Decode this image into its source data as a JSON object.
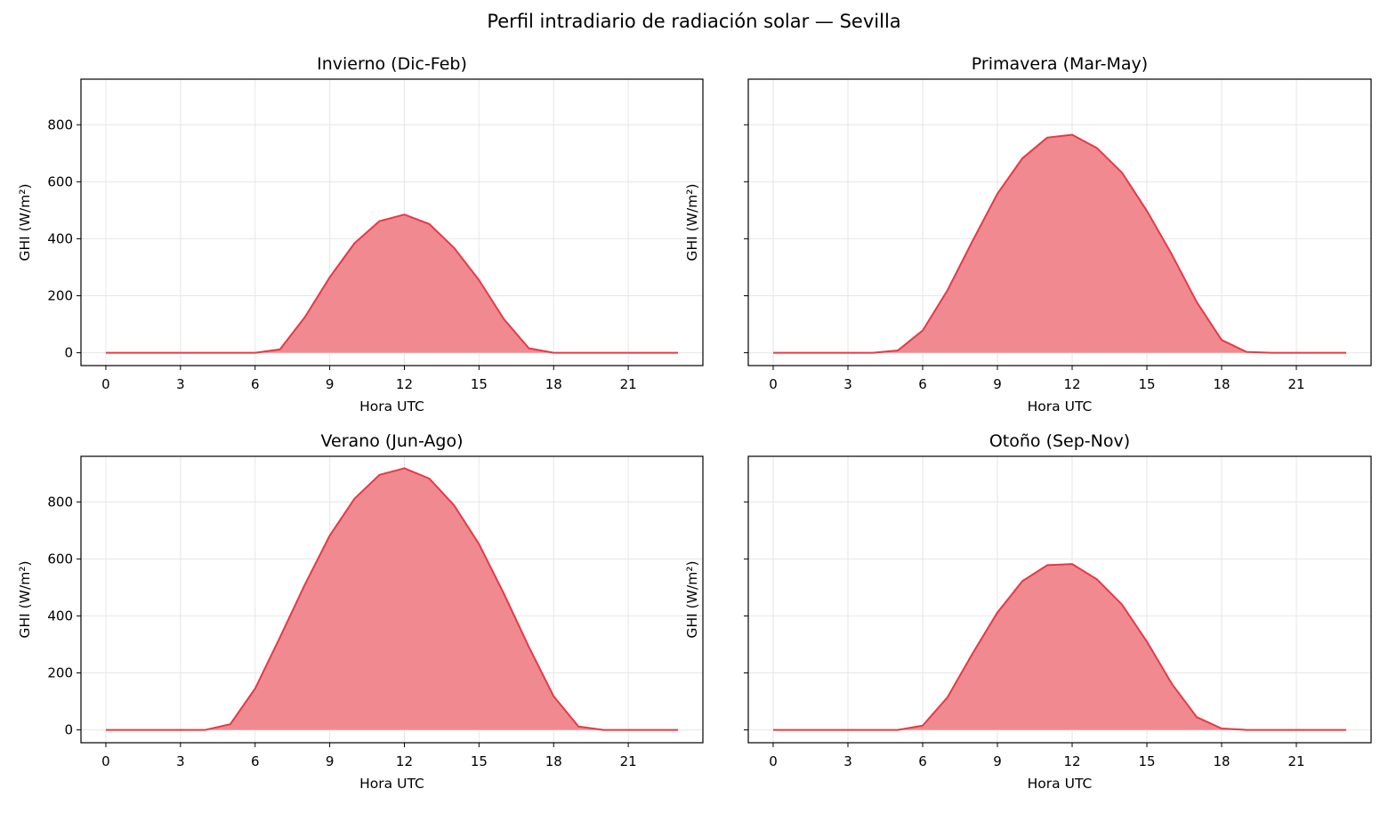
{
  "figure": {
    "suptitle": "Perfil intradiario de radiación solar — Sevilla"
  },
  "colors": {
    "line": "#e63946",
    "fill": "#f08a90",
    "grid": "#e6e6e6",
    "axes": "#000000"
  },
  "chart_data": [
    {
      "type": "area",
      "title": "Invierno (Dic-Feb)",
      "xlabel": "Hora UTC",
      "ylabel": "GHI (W/m²)",
      "xlim": [
        -1,
        24
      ],
      "ylim": [
        -45,
        960
      ],
      "xticks": [
        0,
        3,
        6,
        9,
        12,
        15,
        18,
        21
      ],
      "yticks": [
        0,
        200,
        400,
        600,
        800
      ],
      "show_yticklabels": true,
      "grid": true,
      "x": [
        0,
        1,
        2,
        3,
        4,
        5,
        6,
        7,
        8,
        9,
        10,
        11,
        12,
        13,
        14,
        15,
        16,
        17,
        18,
        19,
        20,
        21,
        22,
        23
      ],
      "values": [
        0,
        0,
        0,
        0,
        0,
        0,
        0,
        12,
        125,
        265,
        385,
        462,
        485,
        452,
        368,
        255,
        118,
        16,
        0,
        0,
        0,
        0,
        0,
        0
      ]
    },
    {
      "type": "area",
      "title": "Primavera (Mar-May)",
      "xlabel": "Hora UTC",
      "ylabel": "GHI (W/m²)",
      "xlim": [
        -1,
        24
      ],
      "ylim": [
        -45,
        960
      ],
      "xticks": [
        0,
        3,
        6,
        9,
        12,
        15,
        18,
        21
      ],
      "yticks": [
        0,
        200,
        400,
        600,
        800
      ],
      "show_yticklabels": false,
      "grid": true,
      "x": [
        0,
        1,
        2,
        3,
        4,
        5,
        6,
        7,
        8,
        9,
        10,
        11,
        12,
        13,
        14,
        15,
        16,
        17,
        18,
        19,
        20,
        21,
        22,
        23
      ],
      "values": [
        0,
        0,
        0,
        0,
        0,
        8,
        78,
        220,
        392,
        558,
        682,
        755,
        765,
        718,
        632,
        498,
        345,
        178,
        45,
        3,
        0,
        0,
        0,
        0
      ]
    },
    {
      "type": "area",
      "title": "Verano (Jun-Ago)",
      "xlabel": "Hora UTC",
      "ylabel": "GHI (W/m²)",
      "xlim": [
        -1,
        24
      ],
      "ylim": [
        -45,
        960
      ],
      "xticks": [
        0,
        3,
        6,
        9,
        12,
        15,
        18,
        21
      ],
      "yticks": [
        0,
        200,
        400,
        600,
        800
      ],
      "show_yticklabels": true,
      "grid": true,
      "x": [
        0,
        1,
        2,
        3,
        4,
        5,
        6,
        7,
        8,
        9,
        10,
        11,
        12,
        13,
        14,
        15,
        16,
        17,
        18,
        19,
        20,
        21,
        22,
        23
      ],
      "values": [
        0,
        0,
        0,
        0,
        0,
        20,
        145,
        325,
        510,
        682,
        812,
        895,
        918,
        882,
        788,
        652,
        478,
        292,
        118,
        12,
        0,
        0,
        0,
        0
      ]
    },
    {
      "type": "area",
      "title": "Otoño (Sep-Nov)",
      "xlabel": "Hora UTC",
      "ylabel": "GHI (W/m²)",
      "xlim": [
        -1,
        24
      ],
      "ylim": [
        -45,
        960
      ],
      "xticks": [
        0,
        3,
        6,
        9,
        12,
        15,
        18,
        21
      ],
      "yticks": [
        0,
        200,
        400,
        600,
        800
      ],
      "show_yticklabels": false,
      "grid": true,
      "x": [
        0,
        1,
        2,
        3,
        4,
        5,
        6,
        7,
        8,
        9,
        10,
        11,
        12,
        13,
        14,
        15,
        16,
        17,
        18,
        19,
        20,
        21,
        22,
        23
      ],
      "values": [
        0,
        0,
        0,
        0,
        0,
        0,
        15,
        115,
        268,
        412,
        522,
        578,
        582,
        528,
        440,
        310,
        162,
        45,
        5,
        0,
        0,
        0,
        0,
        0
      ]
    }
  ]
}
